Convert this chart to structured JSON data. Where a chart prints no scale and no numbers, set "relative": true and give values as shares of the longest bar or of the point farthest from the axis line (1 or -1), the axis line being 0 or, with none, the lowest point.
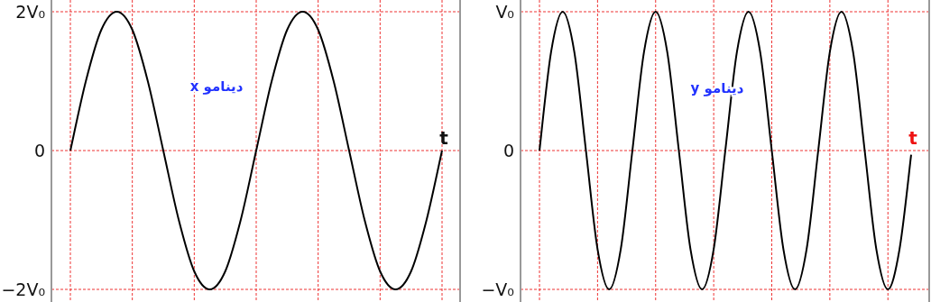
{
  "chart_data": [
    {
      "type": "line",
      "relative": true,
      "xlabel": "t",
      "categories": [
        null,
        null,
        null,
        null,
        null,
        null,
        null,
        null,
        null,
        null,
        null,
        null,
        null,
        null,
        null,
        null,
        null,
        null,
        null,
        null,
        null,
        null,
        null,
        null,
        null
      ],
      "annotations": [
        "دينامو x",
        "2V₀",
        "0",
        "−2V₀"
      ],
      "series": [
        {
          "color": "#000000",
          "values": [
            0,
            0.5,
            0.87,
            1,
            0.87,
            0.5,
            0,
            -0.5,
            -0.87,
            -1,
            -0.87,
            -0.5,
            0,
            0.5,
            0.87,
            1,
            0.87,
            0.5,
            0,
            -0.5,
            -0.87,
            -1,
            -0.87,
            -0.5,
            0
          ]
        }
      ],
      "grid": true
    },
    {
      "type": "line",
      "relative": true,
      "xlabel": "t",
      "categories": [
        null,
        null,
        null,
        null,
        null,
        null,
        null,
        null,
        null,
        null,
        null,
        null,
        null,
        null,
        null,
        null,
        null,
        null,
        null,
        null,
        null,
        null,
        null,
        null,
        null,
        null,
        null,
        null,
        null,
        null,
        null,
        null,
        null
      ],
      "annotations": [
        "دينامو y",
        "V₀",
        "0",
        "−V₀"
      ],
      "series": [
        {
          "color": "#000000",
          "values": [
            0,
            0.71,
            1,
            0.71,
            0,
            -0.71,
            -1,
            -0.71,
            0,
            0.71,
            1,
            0.71,
            0,
            -0.71,
            -1,
            -0.71,
            0,
            0.71,
            1,
            0.71,
            0,
            -0.71,
            -1,
            -0.71,
            0,
            0.71,
            1,
            0.71,
            0,
            -0.71,
            -1,
            -0.71,
            -0.03
          ]
        }
      ],
      "grid": true
    }
  ]
}
